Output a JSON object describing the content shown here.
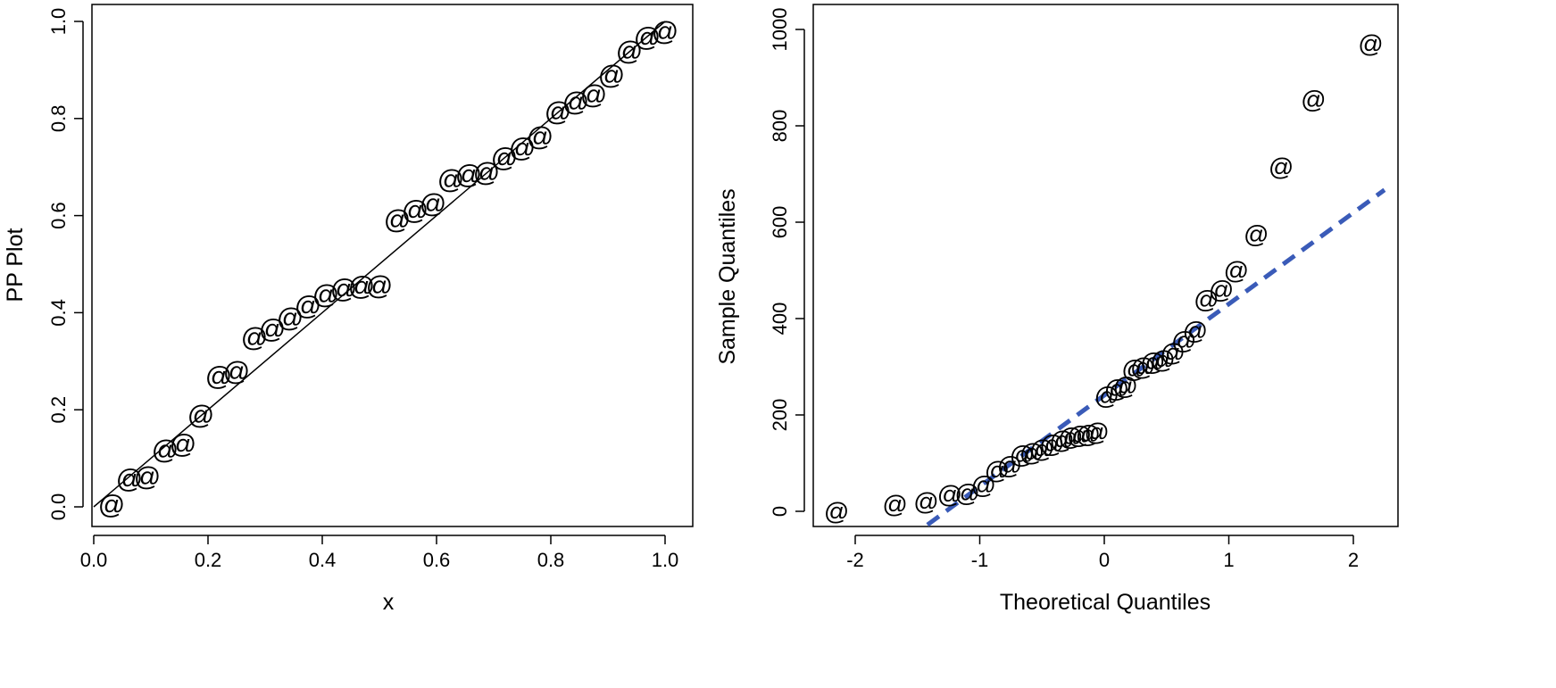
{
  "chart_data": [
    {
      "type": "scatter",
      "title": "",
      "xlabel": "x",
      "ylabel": "PP Plot",
      "xlim": [
        0,
        1
      ],
      "ylim": [
        0,
        1
      ],
      "xticks": [
        "0.0",
        "0.2",
        "0.4",
        "0.6",
        "0.8",
        "1.0"
      ],
      "yticks": [
        "0.0",
        "0.2",
        "0.4",
        "0.6",
        "0.8",
        "1.0"
      ],
      "marker": "@",
      "marker_color": "#3a5bb8",
      "line_color": "#000000",
      "grid": false,
      "reference_line": {
        "x": [
          0,
          1
        ],
        "y": [
          0,
          1
        ],
        "style": "solid"
      },
      "series": [
        {
          "x": [
            0.03125,
            0.0625,
            0.09375,
            0.125,
            0.15625,
            0.1875,
            0.21875,
            0.25,
            0.28125,
            0.3125,
            0.34375,
            0.375,
            0.40625,
            0.4375,
            0.46875,
            0.5,
            0.53125,
            0.5625,
            0.59375,
            0.625,
            0.65625,
            0.6875,
            0.71875,
            0.75,
            0.78125,
            0.8125,
            0.84375,
            0.875,
            0.90625,
            0.9375,
            0.96875,
            1.0
          ],
          "y": [
            0.005,
            0.058,
            0.063,
            0.118,
            0.13,
            0.19,
            0.27,
            0.28,
            0.35,
            0.367,
            0.39,
            0.415,
            0.438,
            0.45,
            0.455,
            0.456,
            0.592,
            0.612,
            0.625,
            0.675,
            0.685,
            0.69,
            0.72,
            0.74,
            0.763,
            0.815,
            0.835,
            0.85,
            0.89,
            0.94,
            0.968,
            0.98
          ]
        }
      ]
    },
    {
      "type": "scatter",
      "title": "",
      "xlabel": "Theoretical Quantiles",
      "ylabel": "Sample Quantiles",
      "xlim": [
        -2.25,
        2.25
      ],
      "ylim": [
        -30,
        1000
      ],
      "xticks": [
        "-2",
        "-1",
        "0",
        "1",
        "2"
      ],
      "yticks": [
        "0",
        "200",
        "400",
        "600",
        "800",
        "1000"
      ],
      "marker": "@",
      "marker_color": "#000000",
      "line_color": "#3a5bb8",
      "grid": false,
      "reference_line": {
        "x": [
          -1.42,
          2.25
        ],
        "y": [
          -28,
          667
        ],
        "style": "dashed"
      },
      "series": [
        {
          "x": [
            -2.15,
            -1.68,
            -1.43,
            -1.24,
            -1.1,
            -0.97,
            -0.86,
            -0.76,
            -0.66,
            -0.58,
            -0.5,
            -0.42,
            -0.34,
            -0.27,
            -0.2,
            -0.13,
            -0.06,
            0.02,
            0.1,
            0.17,
            0.24,
            0.31,
            0.39,
            0.47,
            0.55,
            0.64,
            0.73,
            0.82,
            0.94,
            1.06,
            1.22,
            1.42,
            1.68,
            2.14
          ],
          "y": [
            0,
            15,
            20,
            35,
            38,
            55,
            85,
            95,
            118,
            122,
            130,
            140,
            148,
            155,
            158,
            160,
            165,
            240,
            255,
            260,
            295,
            300,
            310,
            315,
            330,
            355,
            375,
            440,
            460,
            500,
            575,
            715,
            855,
            970
          ]
        }
      ]
    }
  ]
}
